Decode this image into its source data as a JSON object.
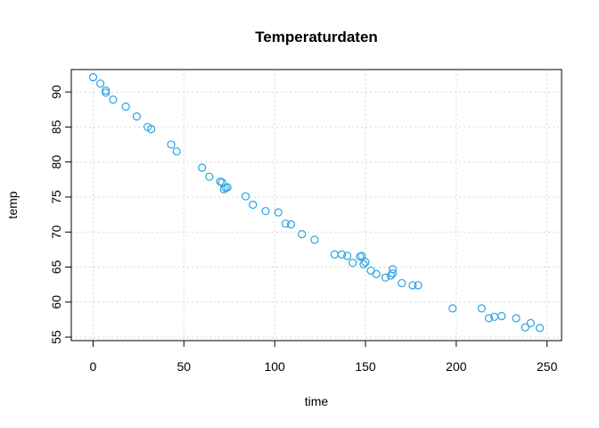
{
  "chart_data": {
    "type": "scatter",
    "title": "Temperaturdaten",
    "xlabel": "time",
    "ylabel": "temp",
    "xlim": [
      -12,
      258
    ],
    "ylim": [
      54.5,
      93.2
    ],
    "xticks": [
      0,
      50,
      100,
      150,
      200,
      250
    ],
    "yticks": [
      55,
      60,
      65,
      70,
      75,
      80,
      85,
      90
    ],
    "grid": true,
    "point_color": "#29A3E0",
    "grid_color": "#D9D9D9",
    "series": [
      {
        "x": [
          0,
          4,
          7,
          7,
          11,
          18,
          24,
          30,
          32,
          43,
          46,
          60,
          64,
          70,
          71,
          72,
          73,
          74,
          84,
          88,
          95,
          102,
          106,
          109,
          115,
          122,
          133,
          137,
          140,
          143,
          147,
          148,
          149,
          150,
          153,
          156,
          161,
          164,
          165,
          165,
          170,
          176,
          179,
          198,
          214,
          218,
          221,
          225,
          233,
          238,
          241,
          246
        ],
        "y": [
          92.1,
          91.2,
          90.2,
          89.9,
          88.9,
          87.9,
          86.5,
          85.0,
          84.7,
          82.5,
          81.5,
          79.2,
          77.9,
          77.2,
          77.1,
          76.1,
          76.3,
          76.4,
          75.1,
          73.9,
          73.0,
          72.8,
          71.2,
          71.1,
          69.7,
          68.9,
          66.8,
          66.8,
          66.6,
          65.6,
          66.5,
          66.6,
          65.4,
          65.7,
          64.5,
          64.0,
          63.5,
          63.8,
          64.1,
          64.7,
          62.7,
          62.4,
          62.4,
          59.1,
          59.1,
          57.7,
          57.9,
          58.0,
          57.7,
          56.4,
          57.0,
          56.3
        ]
      }
    ]
  }
}
